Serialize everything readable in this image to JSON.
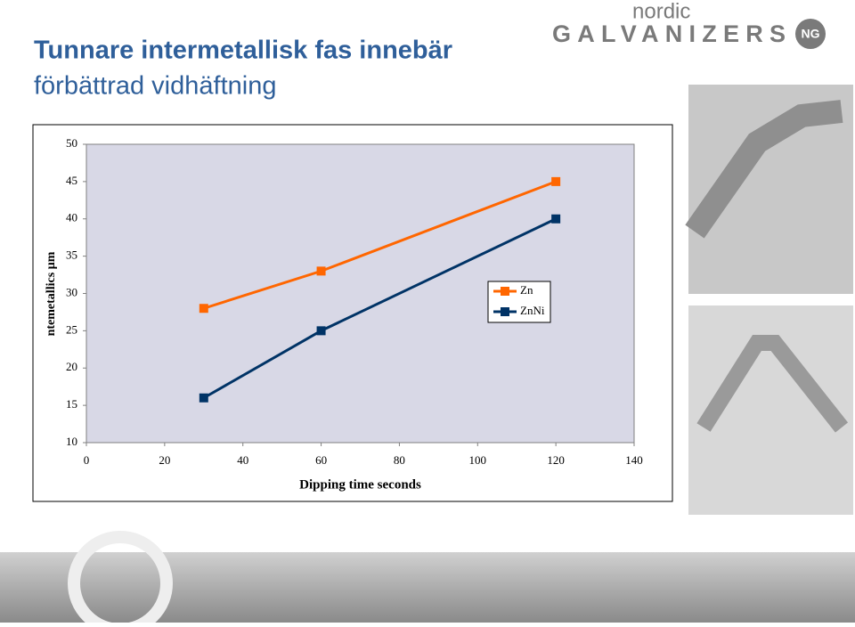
{
  "header": {
    "title_lines": [
      "Tunnare intermetallisk fas innebär",
      "förbättrad vidhäftning"
    ],
    "logo": {
      "top": "nordic",
      "main": "GALVANIZERS",
      "mark": "NG"
    }
  },
  "chart_data": {
    "type": "line",
    "x": [
      30,
      60,
      120
    ],
    "series": [
      {
        "name": "Zn",
        "color": "#ff6600",
        "values": [
          28,
          33,
          45
        ]
      },
      {
        "name": "ZnNi",
        "color": "#003366",
        "values": [
          16,
          25,
          40
        ]
      }
    ],
    "xlim": [
      0,
      140
    ],
    "xticks": [
      0,
      20,
      40,
      60,
      80,
      100,
      120,
      140
    ],
    "ylim": [
      10,
      50
    ],
    "yticks": [
      10,
      15,
      20,
      25,
      30,
      35,
      40,
      45,
      50
    ],
    "xlabel": "Dipping time seconds",
    "ylabel": "ntemetallics µm",
    "legend": "right"
  }
}
